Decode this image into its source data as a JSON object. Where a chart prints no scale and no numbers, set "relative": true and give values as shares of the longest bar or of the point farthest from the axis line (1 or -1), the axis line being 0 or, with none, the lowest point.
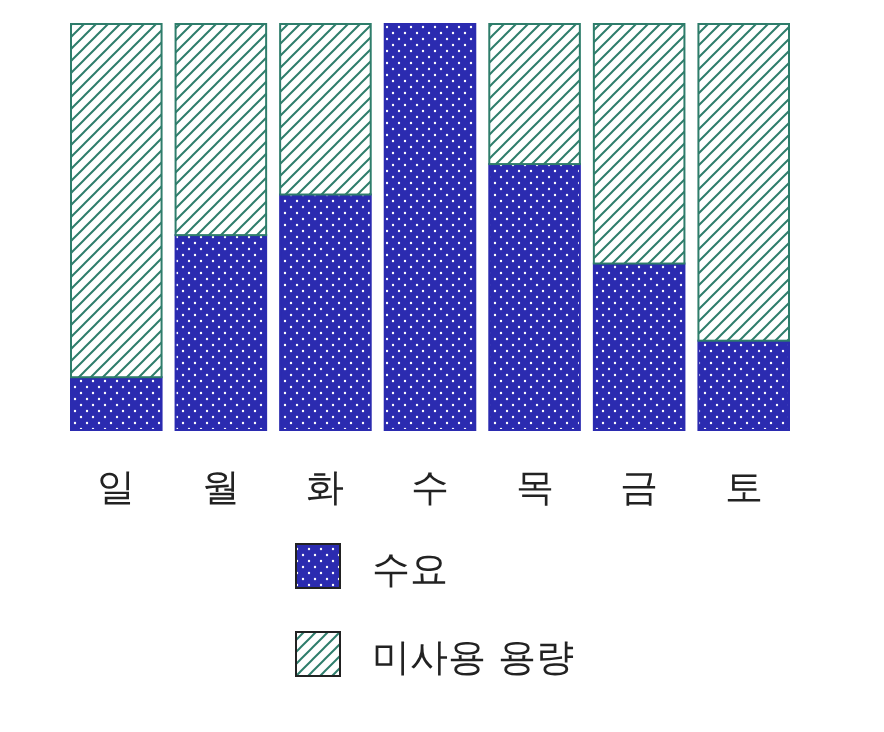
{
  "chart_data": {
    "type": "bar",
    "stacked": true,
    "relative": true,
    "legend": "bottom",
    "categories": [
      "일",
      "월",
      "화",
      "수",
      "목",
      "금",
      "토"
    ],
    "series": [
      {
        "name": "수요",
        "color": "#2b2bb0",
        "values": [
          0.13,
          0.48,
          0.58,
          1.0,
          0.655,
          0.41,
          0.22
        ]
      },
      {
        "name": "미사용 용량",
        "color": "#2e7d6b",
        "values": [
          0.87,
          0.52,
          0.42,
          0.0,
          0.345,
          0.59,
          0.78
        ]
      }
    ]
  }
}
